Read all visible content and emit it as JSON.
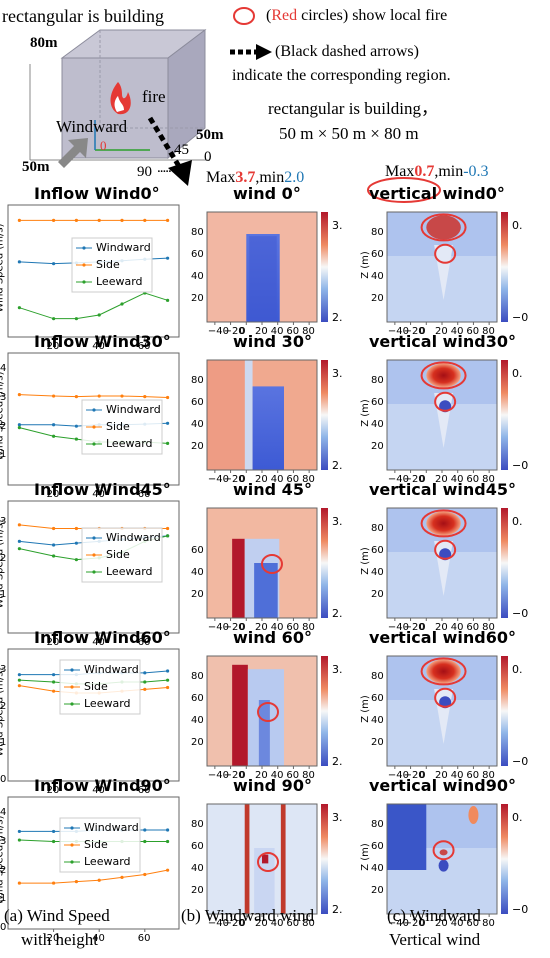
{
  "header": {
    "building_note": "rectangular is building",
    "height_label": "80m",
    "fire_label": "fire",
    "windward_label": "Windward",
    "origin_label": "0",
    "width_label_left": "50m",
    "width_label_right": "50m",
    "angle_45": "45",
    "angle_0": "0",
    "angle_90": "90",
    "angle_dots": ".....",
    "legend_red_paren_open": "(",
    "legend_red_word": "Red",
    "legend_red_rest": " circles) show local fire",
    "legend_arrow_line1": "(Black dashed arrows)",
    "legend_arrow_line2": "indicate the corresponding region.",
    "building_dims_line1": "rectangular is  building，",
    "building_dims_line2": "50 m × 50 m × 80 m",
    "wind_range": {
      "max_text": "Max",
      "max_value": "3.7",
      "min_text": ",min",
      "min_value": "2.0"
    },
    "vertical_range": {
      "max_text": "Max",
      "max_value": "0.7",
      "min_text": ",min",
      "min_value": "-0.3"
    }
  },
  "colors": {
    "red": "#e53935",
    "blue": "#1f77b4",
    "orange": "#ff7f0e",
    "green": "#2ca02c",
    "accent_red_text": "#e53935",
    "accent_blue_text": "#1f77b4"
  },
  "chart_data": [
    {
      "type": "line",
      "title": "Inflow Wind0°",
      "ylabel": "Wind Speed (m/s)",
      "xticks": [
        "20",
        "40",
        "60"
      ],
      "yticks": [],
      "x": [
        5,
        20,
        30,
        40,
        50,
        60,
        70
      ],
      "series": [
        {
          "name": "Windward",
          "values": [
            2.05,
            2.0,
            2.02,
            2.05,
            2.08,
            2.12,
            2.15
          ]
        },
        {
          "name": "Side",
          "values": [
            3.18,
            3.18,
            3.18,
            3.18,
            3.18,
            3.18,
            3.18
          ]
        },
        {
          "name": "Leeward",
          "values": [
            0.8,
            0.5,
            0.5,
            0.6,
            0.9,
            1.2,
            1.0
          ]
        }
      ],
      "ylim": [
        0,
        3.6
      ]
    },
    {
      "type": "line",
      "title": "Inflow Wind30°",
      "ylabel": "Wind Speed (m/s)",
      "xticks": [
        "20",
        "40",
        "60"
      ],
      "yticks": [
        "1",
        "2",
        "3",
        "4"
      ],
      "x": [
        5,
        20,
        30,
        40,
        50,
        60,
        70
      ],
      "series": [
        {
          "name": "Windward",
          "values": [
            2.1,
            2.1,
            2.05,
            2.1,
            2.1,
            2.12,
            2.15
          ]
        },
        {
          "name": "Side",
          "values": [
            3.15,
            3.1,
            3.08,
            3.1,
            3.1,
            3.08,
            3.05
          ]
        },
        {
          "name": "Leeward",
          "values": [
            2.0,
            1.7,
            1.6,
            1.5,
            1.5,
            1.5,
            1.45
          ]
        }
      ],
      "ylim": [
        0,
        4.6
      ]
    },
    {
      "type": "line",
      "title": "Inflow Wind45°",
      "ylabel": "Wind Speed (m/s)",
      "xticks": [
        "20",
        "40",
        "60"
      ],
      "yticks": [
        "1",
        "2",
        "3"
      ],
      "x": [
        5,
        20,
        30,
        40,
        50,
        60,
        70
      ],
      "series": [
        {
          "name": "Windward",
          "values": [
            2.5,
            2.4,
            2.45,
            2.5,
            2.55,
            2.6,
            2.65
          ]
        },
        {
          "name": "Side",
          "values": [
            2.95,
            2.85,
            2.85,
            2.85,
            2.85,
            2.85,
            2.85
          ]
        },
        {
          "name": "Leeward",
          "values": [
            2.3,
            2.1,
            2.0,
            2.05,
            2.2,
            2.5,
            2.65
          ]
        }
      ],
      "ylim": [
        0,
        3.6
      ]
    },
    {
      "type": "line",
      "title": "Inflow Wind60°",
      "ylabel": "Wind Speed (m/s)",
      "xticks": [
        "20",
        "40",
        "60"
      ],
      "yticks": [
        "0",
        "1",
        "2",
        "3"
      ],
      "x": [
        5,
        20,
        30,
        40,
        50,
        60,
        70
      ],
      "series": [
        {
          "name": "Windward",
          "values": [
            2.9,
            2.9,
            2.9,
            2.95,
            2.95,
            2.95,
            3.0
          ]
        },
        {
          "name": "Side",
          "values": [
            2.6,
            2.45,
            2.4,
            2.4,
            2.45,
            2.5,
            2.55
          ]
        },
        {
          "name": "Leeward",
          "values": [
            2.75,
            2.7,
            2.65,
            2.65,
            2.7,
            2.7,
            2.75
          ]
        }
      ],
      "ylim": [
        0,
        3.6
      ]
    },
    {
      "type": "line",
      "title": "Inflow Wind90°",
      "ylabel": "Wind Speed (m/s)",
      "xticks": [
        "20",
        "40",
        "60"
      ],
      "yticks": [
        "0",
        "1",
        "2",
        "3",
        "4"
      ],
      "x": [
        5,
        20,
        30,
        40,
        50,
        60,
        70
      ],
      "series": [
        {
          "name": "Windward",
          "values": [
            3.4,
            3.4,
            3.4,
            3.45,
            3.45,
            3.45,
            3.45
          ]
        },
        {
          "name": "Side",
          "values": [
            1.6,
            1.6,
            1.65,
            1.7,
            1.8,
            1.9,
            2.05
          ]
        },
        {
          "name": "Leeward",
          "values": [
            3.1,
            3.05,
            3.05,
            3.05,
            3.05,
            3.05,
            3.05
          ]
        }
      ],
      "ylim": [
        0,
        4.6
      ]
    },
    {
      "type": "heatmap",
      "title": "wind 0°",
      "xticks": [
        "−40",
        "−20",
        "0",
        "20",
        "40",
        "60",
        "80"
      ],
      "yticks": [
        "20",
        "40",
        "60",
        "80"
      ],
      "colorbar_tick": "3.",
      "colorbar_bottom": "2.",
      "fire_circles": 0
    },
    {
      "type": "heatmap",
      "title": "wind 30°",
      "xticks": [
        "−40",
        "−20",
        "0",
        "20",
        "40",
        "60",
        "80"
      ],
      "yticks": [
        "20",
        "40",
        "60",
        "80"
      ],
      "colorbar_tick": "3.",
      "colorbar_bottom": "2.",
      "fire_circles": 0
    },
    {
      "type": "heatmap",
      "title": "wind 45°",
      "xticks": [
        "−40",
        "−20",
        "0",
        "20",
        "40",
        "60",
        "80"
      ],
      "yticks": [
        "20",
        "40",
        "60"
      ],
      "colorbar_tick": "3.",
      "colorbar_bottom": "2.",
      "fire_circles": 1
    },
    {
      "type": "heatmap",
      "title": "wind 60°",
      "xticks": [
        "−40",
        "−20",
        "0",
        "20",
        "40",
        "60",
        "80"
      ],
      "yticks": [
        "20",
        "40",
        "60",
        "80"
      ],
      "colorbar_tick": "3.",
      "colorbar_bottom": "2.",
      "fire_circles": 1
    },
    {
      "type": "heatmap",
      "title": "wind 90°",
      "xticks": [
        "−40",
        "−20",
        "0",
        "20",
        "40",
        "60",
        "80"
      ],
      "yticks": [
        "20",
        "40",
        "60",
        "80"
      ],
      "colorbar_tick": "3.",
      "colorbar_bottom": "2.",
      "fire_circles": 1
    },
    {
      "type": "heatmap",
      "title": "vertical  wind0°",
      "ylabel": "Z (m)",
      "xticks": [
        "−40",
        "−20",
        "0",
        "20",
        "40",
        "60",
        "80"
      ],
      "yticks": [
        "20",
        "40",
        "60",
        "80"
      ],
      "colorbar_tick": "0.",
      "colorbar_bottom": "−0",
      "fire_circles": 2
    },
    {
      "type": "heatmap",
      "title": "vertical wind30°",
      "ylabel": "Z (m)",
      "xticks": [
        "−40",
        "−20",
        "0",
        "20",
        "40",
        "60",
        "80"
      ],
      "yticks": [
        "20",
        "40",
        "60",
        "80"
      ],
      "colorbar_tick": "0.",
      "colorbar_bottom": "−0",
      "fire_circles": 2
    },
    {
      "type": "heatmap",
      "title": "vertical wind45°",
      "ylabel": "Z (m)",
      "xticks": [
        "−40",
        "−20",
        "0",
        "20",
        "40",
        "60",
        "80"
      ],
      "yticks": [
        "20",
        "40",
        "60",
        "80"
      ],
      "colorbar_tick": "0.",
      "colorbar_bottom": "−0",
      "fire_circles": 2
    },
    {
      "type": "heatmap",
      "title": "vertical wind60°",
      "ylabel": "Z (m)",
      "xticks": [
        "−40",
        "−20",
        "0",
        "20",
        "40",
        "60",
        "80"
      ],
      "yticks": [
        "20",
        "40",
        "60",
        "80"
      ],
      "colorbar_tick": "0.",
      "colorbar_bottom": "−0",
      "fire_circles": 2
    },
    {
      "type": "heatmap",
      "title": "vertical wind90°",
      "ylabel": "Z (m)",
      "xticks": [
        "−40",
        "−20",
        "0",
        "20",
        "40",
        "60",
        "80"
      ],
      "yticks": [
        "20",
        "40",
        "60",
        "80"
      ],
      "colorbar_tick": "0.",
      "colorbar_bottom": "−0",
      "fire_circles": 1
    }
  ],
  "captions": {
    "a_line1": "(a) Wind Speed",
    "a_line2": "with height",
    "b": "(b) Windward wind",
    "c_line1": "(c) Windward",
    "c_line2": "Vertical wind"
  }
}
